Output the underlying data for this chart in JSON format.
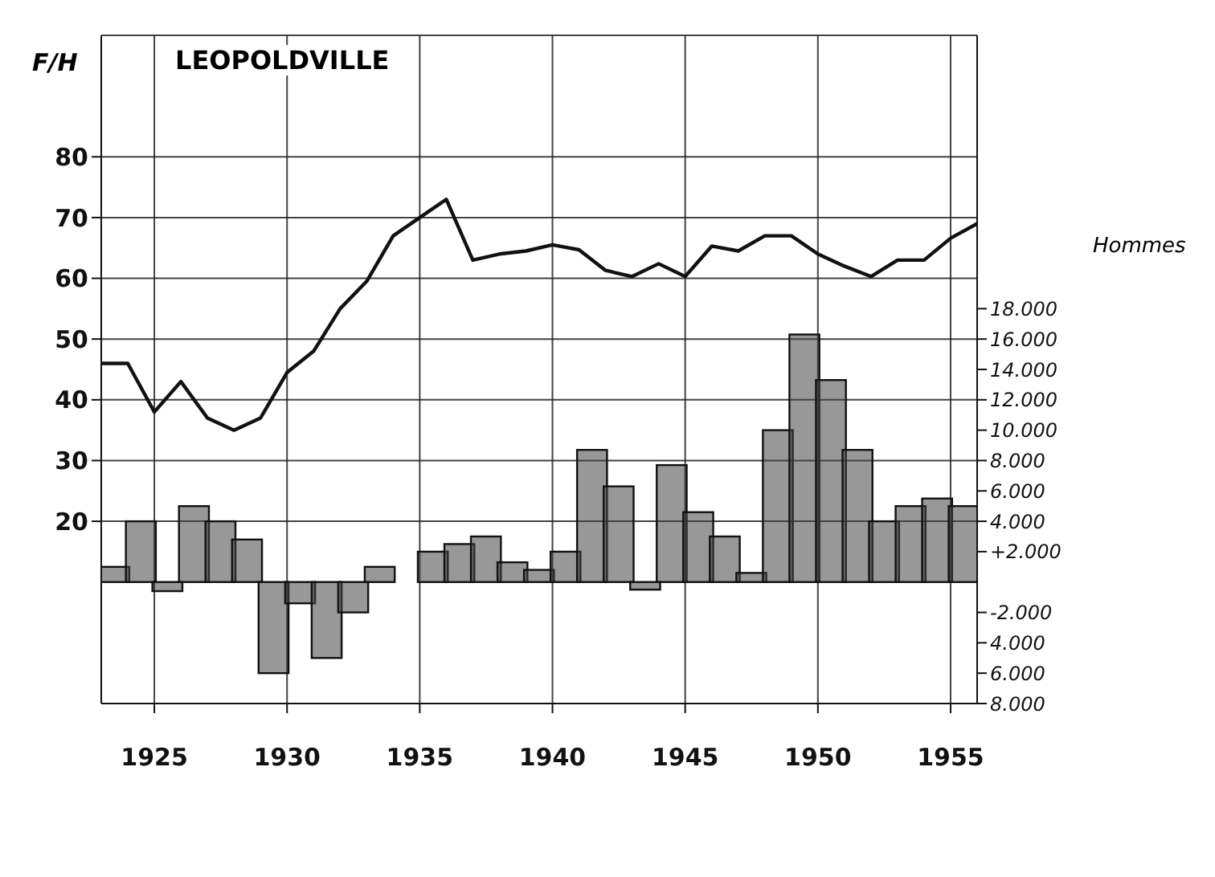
{
  "chart_data": {
    "type": "line",
    "title": "LEOPOLDVILLE",
    "ylabel": "F/H",
    "y2label": "Hommes",
    "xlim": [
      1923,
      1956
    ],
    "xticks": [
      1925,
      1930,
      1935,
      1940,
      1945,
      1950,
      1955
    ],
    "ylim": [
      -10,
      100
    ],
    "yticks": [
      20,
      30,
      40,
      50,
      60,
      70,
      80
    ],
    "y2lim": [
      -8000,
      36000
    ],
    "y2ticks": [
      {
        "value": -8000,
        "label": "8.000"
      },
      {
        "value": -6000,
        "label": "6.000"
      },
      {
        "value": -4000,
        "label": "4.000"
      },
      {
        "value": -2000,
        "label": "-2.000"
      },
      {
        "value": 2000,
        "label": "+2.000"
      },
      {
        "value": 4000,
        "label": "4.000"
      },
      {
        "value": 6000,
        "label": "6.000"
      },
      {
        "value": 8000,
        "label": "8.000"
      },
      {
        "value": 10000,
        "label": "10.000"
      },
      {
        "value": 12000,
        "label": "12.000"
      },
      {
        "value": 14000,
        "label": "14.000"
      },
      {
        "value": 16000,
        "label": "16.000"
      },
      {
        "value": 18000,
        "label": "18.000"
      }
    ],
    "grid": true,
    "legend": false,
    "series": [
      {
        "color": "#111111",
        "x": [
          1923,
          1924,
          1925,
          1926,
          1927,
          1928,
          1929,
          1930,
          1931,
          1932,
          1933,
          1934,
          1935,
          1936,
          1937,
          1938,
          1939,
          1940,
          1941,
          1942,
          1943,
          1944,
          1945,
          1946,
          1947,
          1948,
          1949,
          1950,
          1951,
          1952,
          1953,
          1954,
          1955,
          1956
        ],
        "values": [
          46,
          46,
          38,
          43,
          37,
          35,
          37,
          44.5,
          48,
          55,
          59.5,
          67,
          70,
          73,
          63,
          64,
          64.5,
          65.5,
          64.7,
          61.3,
          60.3,
          62.4,
          60.3,
          65.3,
          64.5,
          67,
          67,
          64,
          62,
          60.3,
          63,
          63,
          66.6,
          69
        ]
      },
      {
        "type": "bar",
        "axis": "y2",
        "color": "#444444",
        "x": [
          1923.5,
          1924.5,
          1925.5,
          1926.5,
          1927.5,
          1928.5,
          1929.5,
          1930.5,
          1931.5,
          1932.5,
          1933.5,
          1934.5,
          1935.5,
          1936.5,
          1937.5,
          1938.5,
          1939.5,
          1940.5,
          1941.5,
          1942.5,
          1943.5,
          1944.5,
          1945.5,
          1946.5,
          1947.5,
          1948.5,
          1949.5,
          1950.5,
          1951.5,
          1952.5,
          1953.5,
          1954.5,
          1955.5
        ],
        "values": [
          1000,
          4000,
          -600,
          5000,
          4000,
          2800,
          -6000,
          -1400,
          -5000,
          -2000,
          1000,
          0,
          2000,
          2500,
          3000,
          1300,
          800,
          2000,
          8700,
          6300,
          -500,
          7700,
          4600,
          3000,
          600,
          10000,
          16300,
          13300,
          8700,
          4000,
          5000,
          5500,
          5000
        ]
      }
    ]
  }
}
